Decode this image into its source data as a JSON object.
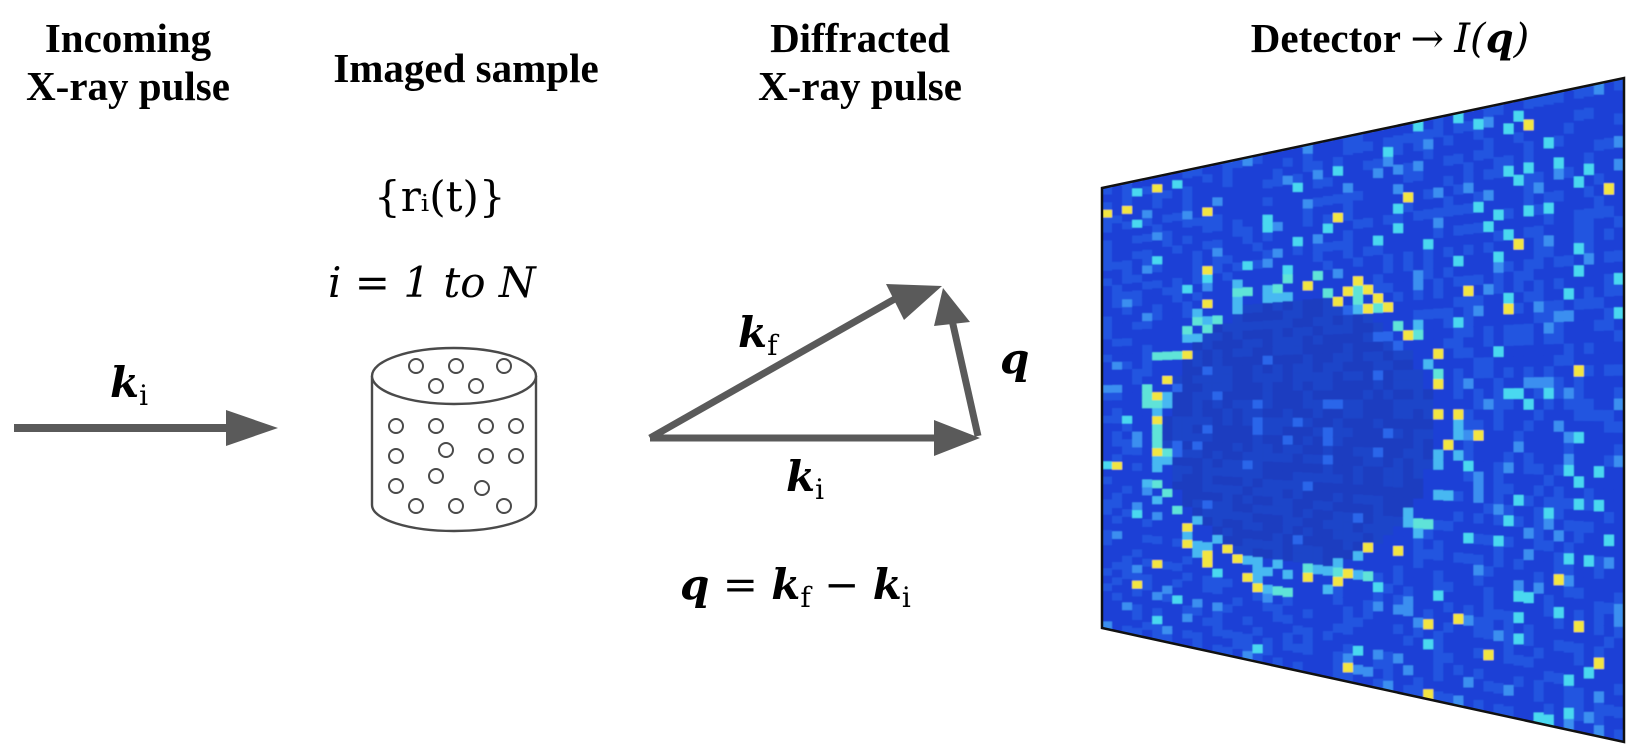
{
  "headings": {
    "incoming": [
      "Incoming",
      "X-ray pulse"
    ],
    "imaged": "Imaged sample",
    "diffracted": [
      "Diffracted",
      "X-ray pulse"
    ],
    "detector": "Detector"
  },
  "math": {
    "detector_intensity_fn": "I(",
    "detector_intensity_var": "q",
    "detector_intensity_close": ")",
    "arrow": "→",
    "positions_set": "{rᵢ(t)}",
    "index_range": "i = 1 to N",
    "k_symbol": "k",
    "sub_i": "i",
    "sub_f": "f",
    "q_symbol": "q",
    "equals": "=",
    "minus": "−"
  },
  "colors": {
    "arrow_gray": "#5a5a5a",
    "detector_base": "#1c3fd6",
    "ring_cyan": "#4ad8f0",
    "ring_yellow": "#f2e542"
  }
}
